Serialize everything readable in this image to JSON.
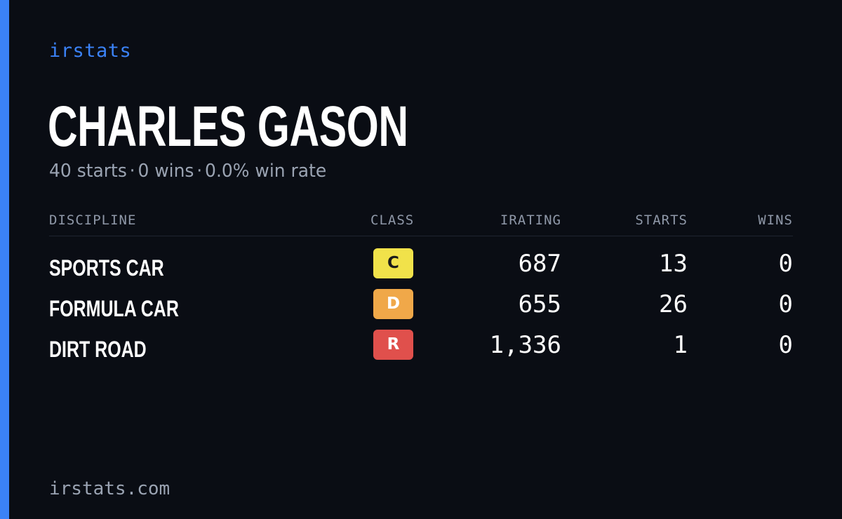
{
  "brand": "irstats",
  "player": {
    "name": "CHARLES GASON",
    "starts_text": "40 starts",
    "wins_text": "0 wins",
    "win_rate_text": "0.0% win rate",
    "separator": "·"
  },
  "table": {
    "headers": {
      "discipline": "DISCIPLINE",
      "class": "CLASS",
      "irating": "IRATING",
      "starts": "STARTS",
      "wins": "WINS"
    },
    "rows": [
      {
        "discipline": "SPORTS CAR",
        "class": "C",
        "class_color": "#f1e24a",
        "class_text_color": "#1a1a1a",
        "irating": "687",
        "starts": "13",
        "wins": "0"
      },
      {
        "discipline": "FORMULA CAR",
        "class": "D",
        "class_color": "#f0a849",
        "class_text_color": "#ffffff",
        "irating": "655",
        "starts": "26",
        "wins": "0"
      },
      {
        "discipline": "DIRT ROAD",
        "class": "R",
        "class_color": "#e0504c",
        "class_text_color": "#ffffff",
        "irating": "1,336",
        "starts": "1",
        "wins": "0"
      }
    ]
  },
  "footer": "irstats.com",
  "colors": {
    "background": "#0a0d14",
    "accent": "#3b82f6",
    "muted_text": "#9aa3b2"
  }
}
